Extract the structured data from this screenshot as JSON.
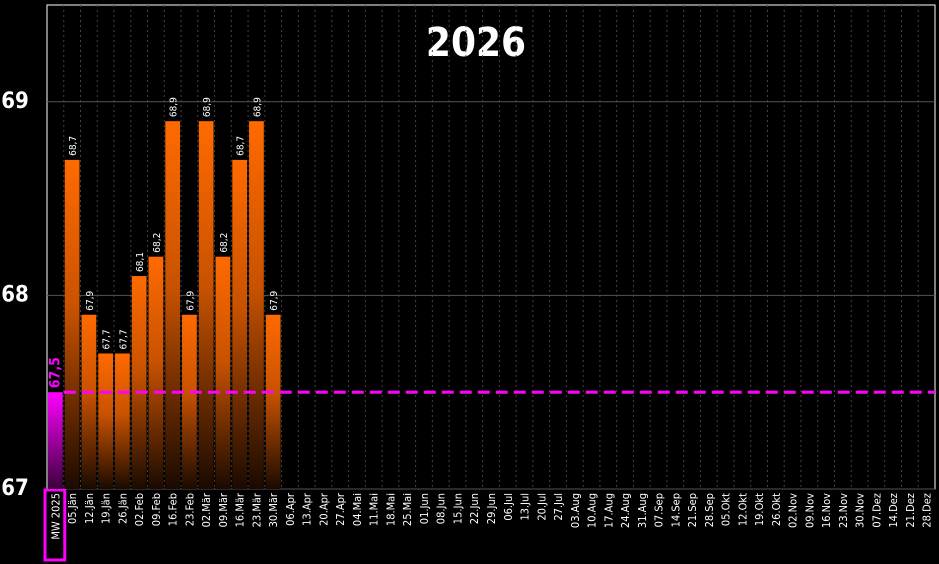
{
  "chart_data": {
    "type": "bar",
    "title": "2026",
    "categories": [
      "MW 2025",
      "05.Jän",
      "12.Jän",
      "19.Jän",
      "26.Jän",
      "02.Feb",
      "09.Feb",
      "16.Feb",
      "23.Feb",
      "02.Mär",
      "09.Mär",
      "16.Mär",
      "23.Mär",
      "30.Mär",
      "06.Apr",
      "13.Apr",
      "20.Apr",
      "27.Apr",
      "04.Mai",
      "11.Mai",
      "18.Mai",
      "25.Mai",
      "01.Jun",
      "08.Jun",
      "15.Jun",
      "22.Jun",
      "29.Jun",
      "06.Jul",
      "13.Jul",
      "20.Jul",
      "27.Jul",
      "03.Aug",
      "10.Aug",
      "17.Aug",
      "24.Aug",
      "31.Aug",
      "07.Sep",
      "14.Sep",
      "21.Sep",
      "28.Sep",
      "05.Okt",
      "12.Okt",
      "19.Okt",
      "26.Okt",
      "02.Nov",
      "09.Nov",
      "16.Nov",
      "23.Nov",
      "30.Nov",
      "07.Dez",
      "14.Dez",
      "21.Dez",
      "28.Dez"
    ],
    "values": [
      67.5,
      68.7,
      67.9,
      67.7,
      67.7,
      68.1,
      68.2,
      68.9,
      67.9,
      68.9,
      68.2,
      68.7,
      68.9,
      67.9,
      null,
      null,
      null,
      null,
      null,
      null,
      null,
      null,
      null,
      null,
      null,
      null,
      null,
      null,
      null,
      null,
      null,
      null,
      null,
      null,
      null,
      null,
      null,
      null,
      null,
      null,
      null,
      null,
      null,
      null,
      null,
      null,
      null,
      null,
      null,
      null,
      null,
      null,
      null
    ],
    "value_labels": [
      "67,5",
      "68,7",
      "67,9",
      "67,7",
      "67,7",
      "68,1",
      "68,2",
      "68,9",
      "67,9",
      "68,9",
      "68,2",
      "68,7",
      "68,9",
      "67,9",
      null,
      null,
      null,
      null,
      null,
      null,
      null,
      null,
      null,
      null,
      null,
      null,
      null,
      null,
      null,
      null,
      null,
      null,
      null,
      null,
      null,
      null,
      null,
      null,
      null,
      null,
      null,
      null,
      null,
      null,
      null,
      null,
      null,
      null,
      null,
      null,
      null,
      null,
      null
    ],
    "color": "#ff6a00",
    "highlight_color": "#ff00ff",
    "ylim": [
      67,
      69.5
    ],
    "yticks": [
      67,
      68,
      69
    ],
    "grid": true
  }
}
